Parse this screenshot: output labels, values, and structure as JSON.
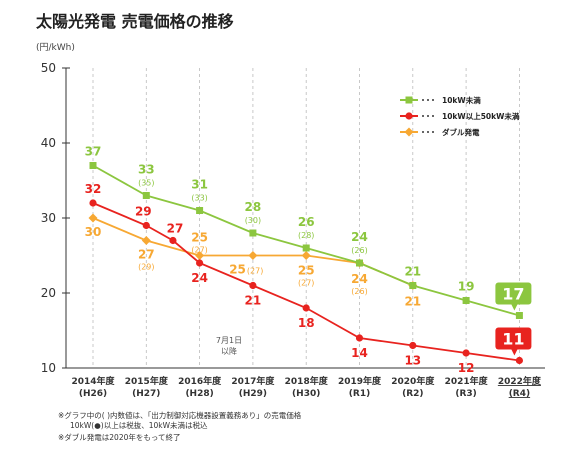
{
  "title": "太陽光発電 売電価格の推移",
  "unit_label": "(円/kWh)",
  "colors": {
    "green": "#8cc63f",
    "red": "#e8231f",
    "orange": "#f7a833",
    "axis": "#333333",
    "grid": "#bbbbbb"
  },
  "annotation": {
    "line1": "7月1日",
    "line2": "以降"
  },
  "footnotes": [
    "※グラフ中の( )内数値は、「出力制御対応機器設置義務あり」の売電価格",
    "10kW(●)以上は税抜、10kW未満は税込",
    "※ダブル発電は2020年をもって終了"
  ],
  "chart_data": {
    "type": "line",
    "ylim": [
      10,
      50
    ],
    "yticks": [
      10,
      20,
      30,
      40,
      50
    ],
    "grid": "vertical-dashed",
    "legend_position": "top-right",
    "categories": [
      [
        "2014年度",
        "(H26)"
      ],
      [
        "2015年度",
        "(H27)"
      ],
      [
        "2016年度",
        "(H28)"
      ],
      [
        "2017年度",
        "(H29)"
      ],
      [
        "2018年度",
        "(H30)"
      ],
      [
        "2019年度",
        "(R1)"
      ],
      [
        "2020年度",
        "(R2)"
      ],
      [
        "2021年度",
        "(R3)"
      ],
      [
        "2022年度",
        "(R4)"
      ]
    ],
    "series": [
      {
        "name": "10kW未満",
        "color": "#8cc63f",
        "marker": "square",
        "x": [
          0,
          1,
          2,
          3,
          4,
          5,
          6,
          7,
          8
        ],
        "values": [
          37,
          33,
          31,
          28,
          26,
          24,
          21,
          19,
          17
        ],
        "labels": [
          "37",
          "33",
          "31",
          "28",
          "26",
          "24",
          "21",
          "19",
          "17"
        ],
        "sublabels": [
          "",
          "(35)",
          "(33)",
          "(30)",
          "(28)",
          "(26)",
          "",
          "",
          ""
        ]
      },
      {
        "name": "10kW以上50kW未満",
        "color": "#e8231f",
        "marker": "circle",
        "x": [
          0,
          1,
          1.5,
          2,
          3,
          4,
          5,
          6,
          7,
          8
        ],
        "values": [
          32,
          29,
          27,
          24,
          21,
          18,
          14,
          13,
          12,
          11
        ],
        "labels": [
          "32",
          "29",
          "27",
          "24",
          "21",
          "18",
          "14",
          "13",
          "12",
          "11"
        ]
      },
      {
        "name": "ダブル発電",
        "color": "#f7a833",
        "marker": "diamond",
        "x": [
          0,
          1,
          2,
          3,
          4,
          5,
          6
        ],
        "values": [
          30,
          27,
          25,
          25,
          25,
          24,
          21
        ],
        "labels": [
          "30",
          "27",
          "25",
          "25",
          "25",
          "24",
          "21"
        ],
        "sublabels": [
          "",
          "(29)",
          "(27)",
          "(27)",
          "(27)",
          "(26)",
          ""
        ]
      }
    ]
  }
}
